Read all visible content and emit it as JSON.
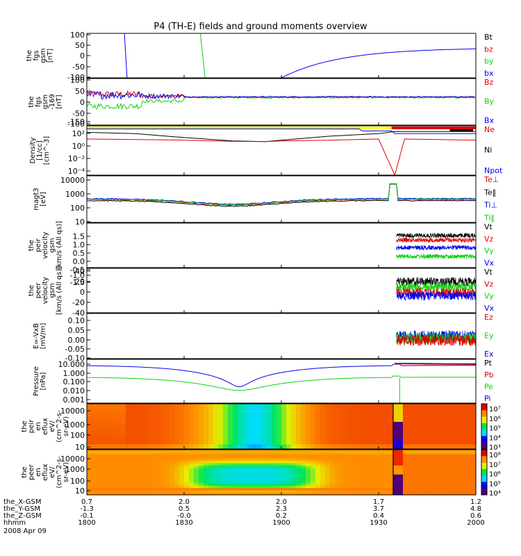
{
  "title": "P4 (TH-E) fields and ground moments overview",
  "colors": {
    "black": "#000000",
    "red": "#e00000",
    "green": "#10d010",
    "blue": "#0000ee",
    "yellow": "#ffff30"
  },
  "x_axis": {
    "range": [
      0,
      120
    ],
    "ticks": [
      0,
      30,
      60,
      90,
      120
    ],
    "rows": [
      {
        "label": "the_X-GSM",
        "values": [
          "0.7",
          "2.0",
          "2.0",
          "1.7",
          "1.2"
        ]
      },
      {
        "label": "the_Y-GSM",
        "values": [
          "-1.3",
          "0.5",
          "2.3",
          "3.7",
          "4.8"
        ]
      },
      {
        "label": "the_Z-GSM",
        "values": [
          "-0.1",
          "-0.0",
          "0.2",
          "0.4",
          "0.6"
        ]
      },
      {
        "label": "hhmm",
        "values": [
          "1800",
          "1830",
          "1900",
          "1930",
          "2000"
        ]
      }
    ],
    "date": "2008 Apr 09"
  },
  "panels": [
    {
      "ylabel": [
        "the",
        "fgs",
        "gsm",
        "[nT]"
      ],
      "ticks": [
        "100",
        "50",
        "0",
        "-50",
        "-100"
      ],
      "legend": [
        {
          "text": "Bt",
          "color": "#000000"
        },
        {
          "text": "bz",
          "color": "#e00000"
        },
        {
          "text": "by",
          "color": "#10d010"
        },
        {
          "text": "bx",
          "color": "#0000ee"
        }
      ]
    },
    {
      "ylabel": [
        "the",
        "fgs",
        "gsm",
        "-169",
        "[nT]"
      ],
      "ticks": [
        "100",
        "50",
        "0",
        "-50",
        "-100",
        "-150"
      ],
      "legend": [
        {
          "text": "Bz",
          "color": "#e00000"
        },
        {
          "text": "By",
          "color": "#10d010"
        },
        {
          "text": "Bx",
          "color": "#0000ee"
        }
      ]
    },
    {
      "ylabel": [
        "Density",
        "[1/cc]",
        "[cm^-3]"
      ],
      "ticks": [
        "10²",
        "10⁰",
        "10⁻²",
        "10⁻⁴"
      ],
      "legend": [
        {
          "text": "Ne",
          "color": "#e00000"
        },
        {
          "text": "Ni",
          "color": "#000000"
        },
        {
          "text": "Npot",
          "color": "#0000ee"
        }
      ]
    },
    {
      "ylabel": [
        "magt3",
        "[eV]"
      ],
      "ticks": [
        "10000",
        "1000",
        "100",
        "10"
      ],
      "legend": [
        {
          "text": "Te⊥",
          "color": "#e00000"
        },
        {
          "text": "Te‖",
          "color": "#000000"
        },
        {
          "text": "Ti⊥",
          "color": "#0000ee"
        },
        {
          "text": "Ti‖",
          "color": "#10d010"
        }
      ]
    },
    {
      "ylabel": [
        "the",
        "peir",
        "velocity",
        "gsm",
        "[km/s (All qs)]"
      ],
      "ticks": [
        "1.5",
        "1.0",
        "0.5",
        "0.0",
        "-0.5",
        "-1.0",
        "-1.5"
      ],
      "legend": [
        {
          "text": "Vt",
          "color": "#000000"
        },
        {
          "text": "Vz",
          "color": "#e00000"
        },
        {
          "text": "Vy",
          "color": "#10d010"
        },
        {
          "text": "Vx",
          "color": "#0000ee"
        }
      ]
    },
    {
      "ylabel": [
        "the",
        "peer",
        "velocity",
        "gsm",
        "[km/s (All qs)]"
      ],
      "ticks": [
        "40",
        "20",
        "0",
        "-20",
        "-40"
      ],
      "legend": [
        {
          "text": "Vt",
          "color": "#000000"
        },
        {
          "text": "Vz",
          "color": "#e00000"
        },
        {
          "text": "Vy",
          "color": "#10d010"
        },
        {
          "text": "Vx",
          "color": "#0000ee"
        }
      ]
    },
    {
      "ylabel": [
        "E=-VxB",
        "[mV/m]"
      ],
      "ticks": [
        "0.10",
        "0.05",
        "0.00",
        "-0.05",
        "-0.10"
      ],
      "legend": [
        {
          "text": "Ez",
          "color": "#e00000"
        },
        {
          "text": "Ey",
          "color": "#10d010"
        },
        {
          "text": "Ex",
          "color": "#0000ee"
        }
      ]
    },
    {
      "ylabel": [
        "Pressure",
        "[nPa]"
      ],
      "ticks": [
        "10.000",
        "1.000",
        "0.100",
        "0.010",
        "0.001"
      ],
      "legend": [
        {
          "text": "Pt",
          "color": "#000000"
        },
        {
          "text": "Pb",
          "color": "#e00000"
        },
        {
          "text": "Pe",
          "color": "#10d010"
        },
        {
          "text": "Pi",
          "color": "#0000ee"
        }
      ]
    },
    {
      "ylabel": [
        "the",
        "peir",
        "en",
        "eflux",
        "eV/",
        "(cm^2-s-",
        "sr-eV)"
      ],
      "ticks": [
        "10000",
        "1000",
        "100",
        "10"
      ],
      "cbar": [
        "10⁷",
        "10⁶",
        "10⁵",
        "10⁴",
        "10³"
      ]
    },
    {
      "ylabel": [
        "the",
        "peer",
        "en",
        "eflux",
        "eV/",
        "(cm^2-s-",
        "sr-eV)"
      ],
      "ticks": [
        "10000",
        "1000",
        "100",
        "10"
      ],
      "cbar": [
        "10⁸",
        "10⁷",
        "10⁶",
        "10⁵",
        "10⁴"
      ]
    }
  ],
  "chart_data": {
    "type": "line",
    "title": "P4 (TH-E) fields and ground moments overview",
    "x_unit": "hhmm",
    "x_ticks": [
      "1800",
      "1830",
      "1900",
      "1930",
      "2000"
    ],
    "panels": [
      {
        "panel": "fgs gsm [nT]",
        "ylim": [
          -100,
          100
        ],
        "series": [
          "Bt",
          "bz",
          "by",
          "bx"
        ]
      },
      {
        "panel": "fgs gsm -169 [nT]",
        "ylim": [
          -150,
          100
        ],
        "series": [
          "Bz",
          "By",
          "Bx"
        ]
      },
      {
        "panel": "Density [1/cc]",
        "scale": "log",
        "ylim": [
          1e-05,
          300
        ],
        "series": [
          {
            "name": "Ni",
            "x": [
              "1800",
              "1815",
              "1830",
              "1845",
              "1855",
              "1900",
              "1915",
              "1930",
              "1935"
            ],
            "y": [
              30,
              20,
              5,
              1.5,
              1.2,
              2,
              8,
              20,
              40
            ]
          },
          {
            "name": "Ne",
            "x": [
              "1800",
              "1815",
              "1830",
              "1845",
              "1855",
              "1900",
              "1915",
              "1930",
              "1935"
            ],
            "y": [
              3,
              2.5,
              2,
              1.3,
              1.2,
              1.5,
              2,
              3,
              1e-05
            ]
          }
        ]
      },
      {
        "panel": "magt3 [eV]",
        "scale": "log",
        "ylim": [
          10,
          10000
        ],
        "series": [
          "Te⊥",
          "Te‖",
          "Ti⊥",
          "Ti‖"
        ]
      },
      {
        "panel": "peir velocity gsm",
        "ylim": [
          -1.5,
          1.5
        ],
        "series": [
          "Vt",
          "Vz",
          "Vy",
          "Vx"
        ]
      },
      {
        "panel": "peer velocity gsm",
        "ylim": [
          -40,
          40
        ],
        "series": [
          "Vt",
          "Vz",
          "Vy",
          "Vx"
        ]
      },
      {
        "panel": "E=-VxB [mV/m]",
        "ylim": [
          -0.1,
          0.1
        ],
        "series": [
          "Ez",
          "Ey",
          "Ex"
        ]
      },
      {
        "panel": "Pressure [nPa]",
        "scale": "log",
        "ylim": [
          0.001,
          10
        ],
        "series": [
          "Pt",
          "Pb",
          "Pe",
          "Pi"
        ]
      },
      {
        "panel": "peir en eflux",
        "type": "heatmap",
        "scale": "log",
        "ylim": [
          10,
          10000
        ]
      },
      {
        "panel": "peer en eflux",
        "type": "heatmap",
        "scale": "log",
        "ylim": [
          10,
          10000
        ]
      }
    ]
  }
}
